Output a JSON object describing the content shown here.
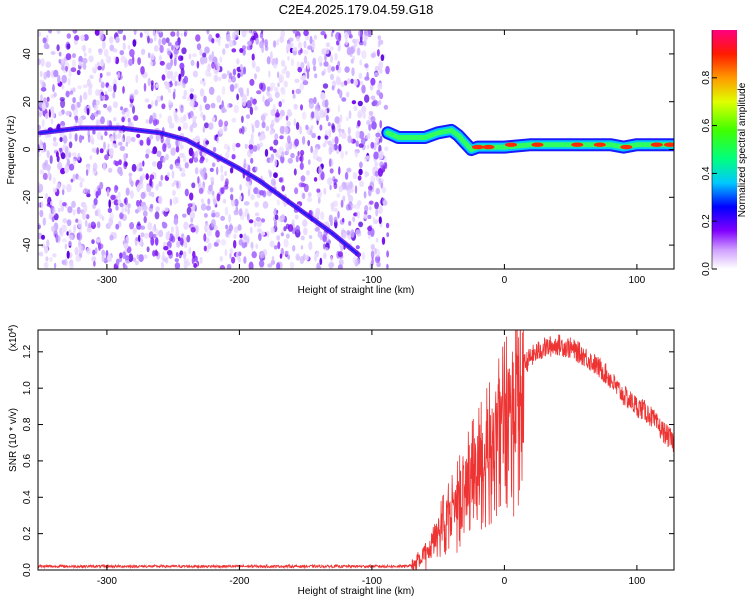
{
  "title": "C2E4.2025.179.04.59.G18",
  "chart_data": [
    {
      "type": "heatmap",
      "xlabel": "Height of straight line (km)",
      "ylabel": "Frequency (Hz)",
      "xlim": [
        -352,
        128
      ],
      "ylim": [
        -50,
        50
      ],
      "xticks": [
        -300,
        -200,
        -100,
        0,
        100
      ],
      "yticks": [
        -40,
        -20,
        0,
        20,
        40
      ],
      "colorbar": {
        "label": "Normalized spectral amplitude",
        "range": [
          0,
          1
        ],
        "ticks": [
          "0.0",
          "0.2",
          "0.4",
          "0.6",
          "0.8"
        ]
      },
      "regions": {
        "noise_x_range": [
          -352,
          -88
        ],
        "signal_x_range": [
          -88,
          128
        ]
      },
      "traces": [
        {
          "x": [
            -350,
            -320,
            -290,
            -260,
            -240,
            -220,
            -200,
            -185,
            -170,
            -150,
            -130,
            -110
          ],
          "y": [
            7,
            9,
            9,
            7,
            4,
            -2,
            -8,
            -13,
            -19,
            -27,
            -35,
            -44
          ]
        },
        {
          "x": [
            -88,
            -80,
            -70,
            -60,
            -50,
            -40,
            -35,
            -30,
            -25,
            -20,
            -10,
            0,
            20,
            40,
            60,
            80,
            90,
            100,
            110,
            128
          ],
          "y": [
            7,
            5,
            5,
            5,
            7,
            8,
            6,
            3,
            0,
            1,
            1,
            1,
            2,
            2,
            2,
            2,
            1,
            2,
            2,
            2
          ]
        }
      ],
      "trace_peaks": [
        {
          "x": -20,
          "y": 1
        },
        {
          "x": -12,
          "y": 1
        },
        {
          "x": 5,
          "y": 2
        },
        {
          "x": 25,
          "y": 2
        },
        {
          "x": 55,
          "y": 2
        },
        {
          "x": 72,
          "y": 2
        },
        {
          "x": 92,
          "y": 1
        },
        {
          "x": 115,
          "y": 2
        },
        {
          "x": 125,
          "y": 2
        }
      ]
    },
    {
      "type": "line",
      "xlabel": "Height of straight line (km)",
      "ylabel": "SNR (10 * v/v)",
      "y_scale_label": "(x10^4)",
      "xlim": [
        -352,
        128
      ],
      "ylim": [
        0,
        1.32
      ],
      "xticks": [
        -300,
        -200,
        -100,
        0,
        100
      ],
      "yticks": [
        "0.0",
        "0.2",
        "0.4",
        "0.6",
        "0.8",
        "1.0",
        "1.2"
      ],
      "series": [
        {
          "color": "#ee3333",
          "x": [
            -352,
            -300,
            -250,
            -200,
            -150,
            -100,
            -75,
            -68,
            -62,
            -55,
            -50,
            -45,
            -40,
            -35,
            -30,
            -25,
            -20,
            -15,
            -10,
            -5,
            0,
            5,
            10,
            15,
            20,
            25,
            30,
            35,
            40,
            45,
            50,
            55,
            60,
            65,
            70,
            75,
            80,
            85,
            90,
            95,
            100,
            105,
            110,
            115,
            120,
            128
          ],
          "y": [
            0.02,
            0.02,
            0.02,
            0.02,
            0.02,
            0.02,
            0.02,
            0.03,
            0.08,
            0.15,
            0.25,
            0.32,
            0.38,
            0.45,
            0.52,
            0.6,
            0.65,
            0.72,
            0.78,
            0.85,
            0.93,
            1.0,
            1.08,
            1.13,
            1.17,
            1.2,
            1.22,
            1.23,
            1.24,
            1.23,
            1.22,
            1.2,
            1.18,
            1.15,
            1.12,
            1.09,
            1.05,
            1.0,
            0.96,
            0.93,
            0.9,
            0.88,
            0.85,
            0.8,
            0.76,
            0.7
          ]
        }
      ]
    }
  ]
}
